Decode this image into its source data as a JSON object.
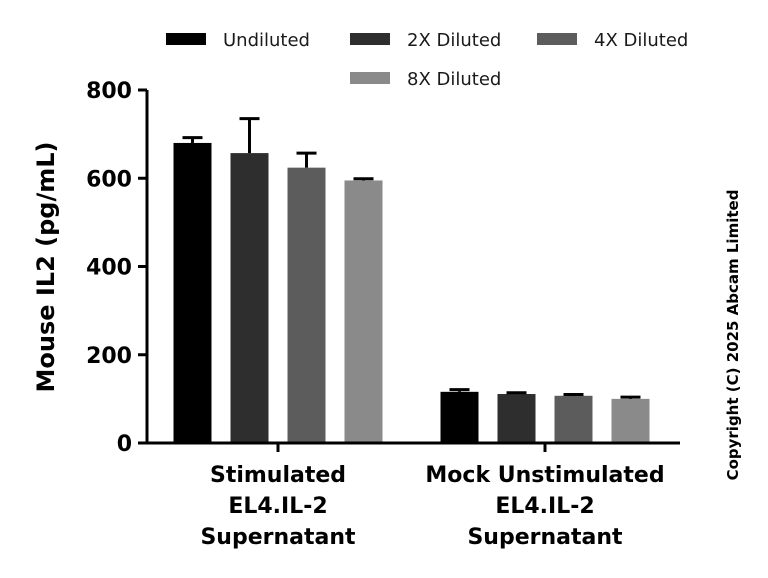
{
  "chart_data": {
    "type": "bar",
    "title": "",
    "xlabel": "",
    "ylabel": "Mouse IL2 (pg/mL)",
    "ylim": [
      0,
      800
    ],
    "yticks": [
      0,
      200,
      400,
      600,
      800
    ],
    "categories": [
      [
        "Stimulated",
        "EL4.IL-2",
        "Supernatant"
      ],
      [
        "Mock Unstimulated",
        "EL4.IL-2",
        "Supernatant"
      ]
    ],
    "series": [
      {
        "name": "Undiluted",
        "color": "#000000",
        "values": [
          680,
          116
        ],
        "errors": [
          12,
          5
        ]
      },
      {
        "name": "2X Diluted",
        "color": "#2e2e2e",
        "values": [
          657,
          111
        ],
        "errors": [
          78,
          3
        ]
      },
      {
        "name": "4X Diluted",
        "color": "#5c5c5c",
        "values": [
          624,
          107
        ],
        "errors": [
          33,
          3
        ]
      },
      {
        "name": "8X Diluted",
        "color": "#8a8a8a",
        "values": [
          595,
          100
        ],
        "errors": [
          4,
          4
        ]
      }
    ],
    "legend_position": "top",
    "grid": false
  },
  "copyright": "Copyright (C) 2025 Abcam Limited"
}
